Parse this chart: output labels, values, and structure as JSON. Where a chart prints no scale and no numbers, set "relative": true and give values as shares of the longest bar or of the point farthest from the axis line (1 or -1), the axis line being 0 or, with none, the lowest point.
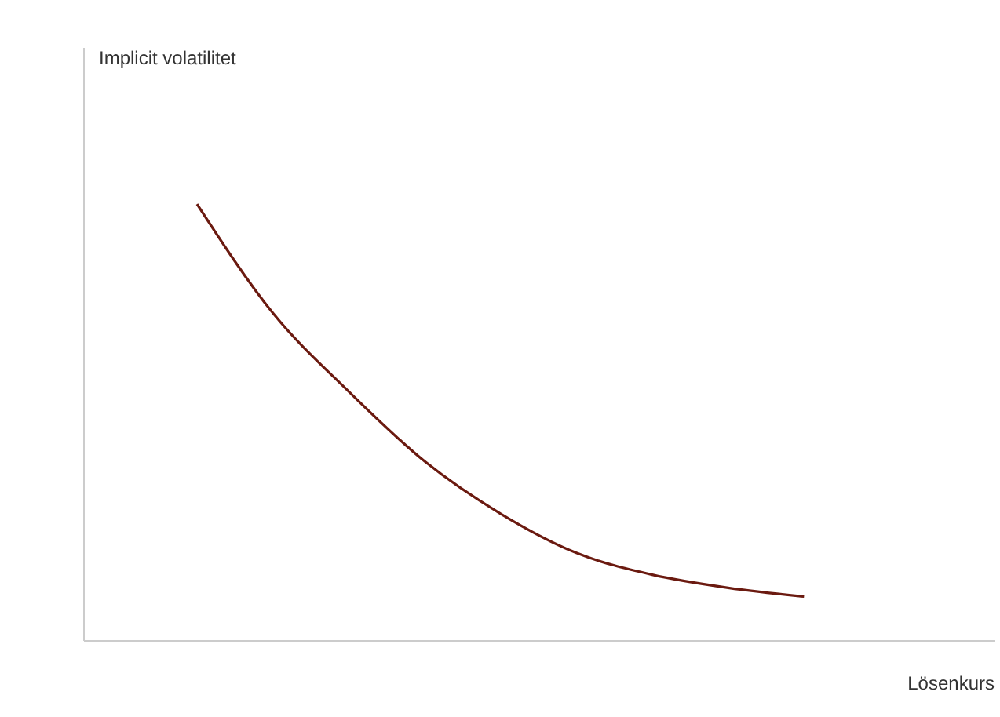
{
  "chart_data": {
    "type": "line",
    "relative": true,
    "xlabel": "Lösenkurs",
    "annotations": [
      "Implicit volatilitet"
    ],
    "categories": [
      null,
      null,
      null,
      null,
      null,
      null,
      null,
      null,
      null,
      null,
      null,
      null
    ],
    "series": [
      {
        "color": "#6b1a10",
        "values": [
          null,
          1.0,
          0.75,
          0.57,
          0.41,
          0.29,
          0.2,
          0.15,
          0.12,
          0.1,
          null,
          null
        ]
      }
    ],
    "grid": false,
    "marker": "none",
    "line_style": "solid"
  }
}
